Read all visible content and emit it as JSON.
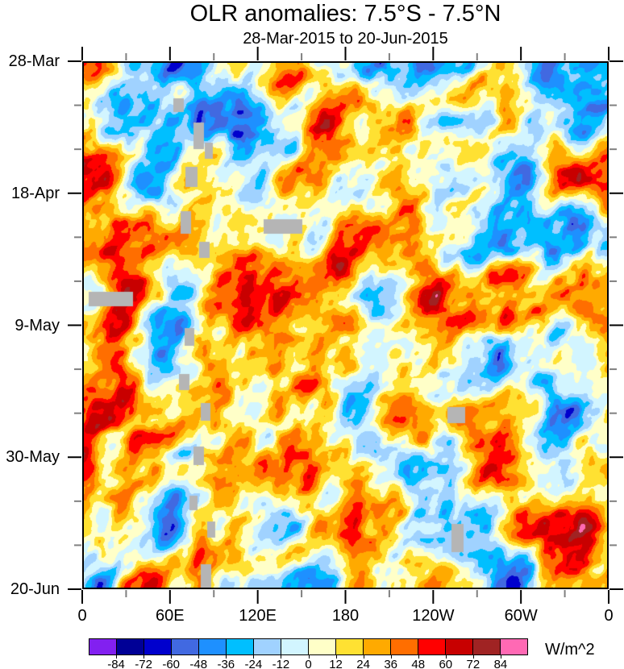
{
  "chart_data": {
    "type": "heatmap",
    "subtype": "hovmoller-time-longitude-filled-contour",
    "title": "OLR anomalies: 7.5°S - 7.5°N",
    "subtitle": "28-Mar-2015 to 20-Jun-2015",
    "x_axis": {
      "labels": [
        "0",
        "60E",
        "120E",
        "180",
        "120W",
        "60W",
        "0"
      ],
      "range_deg": [
        0,
        360
      ],
      "major_step_deg": 60,
      "minor_step_deg": 30
    },
    "y_axis": {
      "labels": [
        "28-Mar",
        "18-Apr",
        "9-May",
        "30-May",
        "20-Jun"
      ],
      "start_date": "28-Mar-2015",
      "end_date": "20-Jun-2015",
      "major_step_days": 21,
      "minor_step_days": 7,
      "direction": "time-increases-downward"
    },
    "colorbar": {
      "unit": "W/m^2",
      "boundaries": [
        -84,
        -72,
        -60,
        -48,
        -36,
        -24,
        -12,
        0,
        12,
        24,
        36,
        48,
        60,
        72,
        84
      ],
      "boundary_labels": [
        "-84",
        "-72",
        "-60",
        "-48",
        "-36",
        "-24",
        "-12",
        "0",
        "12",
        "24",
        "36",
        "48",
        "60",
        "72",
        "84"
      ],
      "colors": [
        "#8220F0",
        "#000096",
        "#0000CD",
        "#4169E1",
        "#1E90FF",
        "#00BFFF",
        "#A0D2FF",
        "#D2F5FF",
        "#FFFFC8",
        "#FFE132",
        "#FFAA00",
        "#FF6E00",
        "#FF0000",
        "#C80000",
        "#A02323",
        "#FF69B4"
      ]
    },
    "missing_data_color": "#b5b5b5",
    "missing_data_rects": [
      [
        111,
        44,
        13,
        17
      ],
      [
        136,
        74,
        13,
        33
      ],
      [
        150,
        99,
        10,
        20
      ],
      [
        126,
        129,
        15,
        25
      ],
      [
        120,
        184,
        13,
        28
      ],
      [
        223,
        194,
        48,
        18
      ],
      [
        143,
        222,
        13,
        20
      ],
      [
        6,
        284,
        55,
        18
      ],
      [
        125,
        329,
        12,
        22
      ],
      [
        118,
        386,
        13,
        20
      ],
      [
        145,
        422,
        12,
        22
      ],
      [
        136,
        476,
        13,
        23
      ],
      [
        131,
        537,
        10,
        18
      ],
      [
        153,
        569,
        10,
        20
      ],
      [
        145,
        622,
        13,
        30
      ],
      [
        451,
        427,
        22,
        20
      ],
      [
        456,
        572,
        15,
        35
      ]
    ],
    "field": {
      "seed": 20150328,
      "wavelengths": [
        72,
        36,
        18,
        9
      ],
      "amplitudes": [
        1.0,
        0.55,
        0.3,
        0.16
      ],
      "shear": 0.3,
      "x_stretch": 1.12,
      "value_scale": 52
    },
    "axis_style": {
      "major_tick_len": 17,
      "minor_tick_len": 9,
      "major_tick_color": "#000000",
      "minor_tick_color": "#808080"
    }
  }
}
